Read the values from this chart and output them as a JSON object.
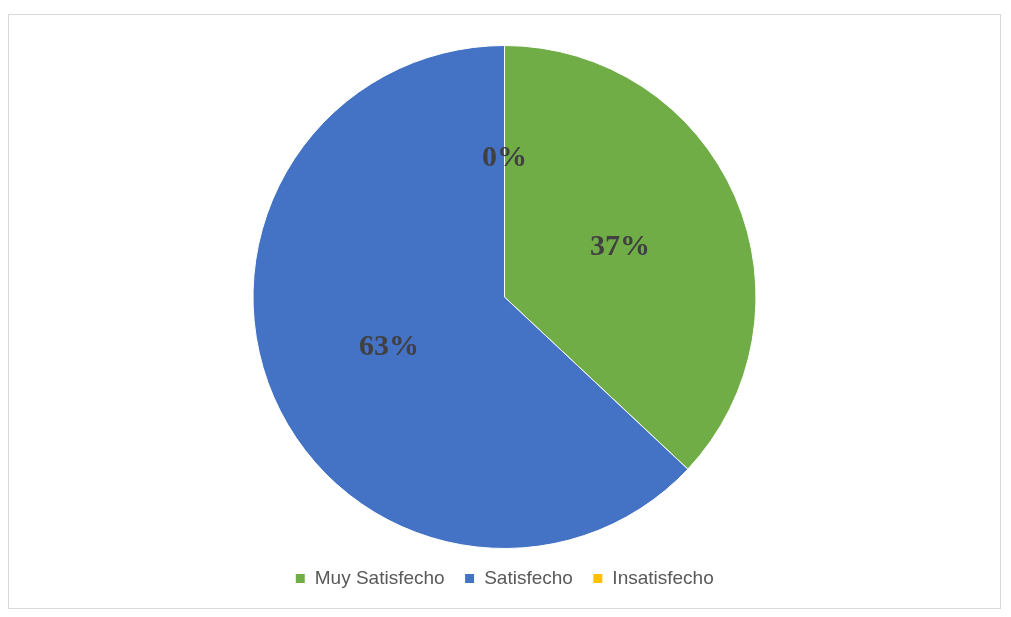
{
  "chart_data": {
    "type": "pie",
    "categories": [
      "Muy Satisfecho",
      "Satisfecho",
      "Insatisfecho"
    ],
    "values": [
      37,
      63,
      0
    ],
    "colors": [
      "#70ad47",
      "#4472c4",
      "#ffc000"
    ],
    "value_labels": [
      "37%",
      "63%",
      "0%"
    ],
    "legend": "bottom"
  }
}
